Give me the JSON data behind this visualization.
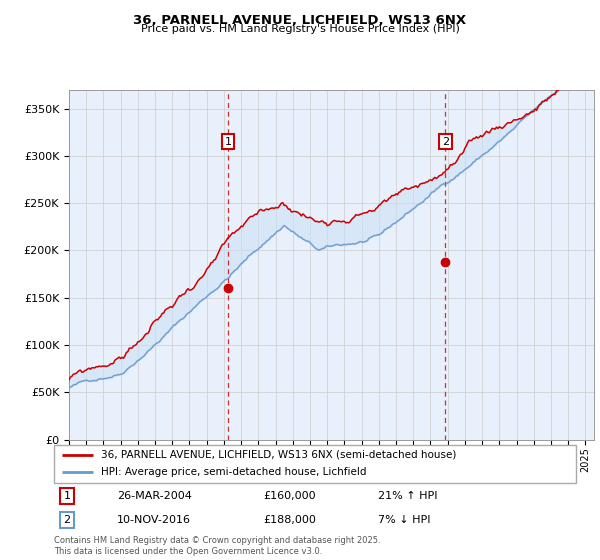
{
  "title1": "36, PARNELL AVENUE, LICHFIELD, WS13 6NX",
  "title2": "Price paid vs. HM Land Registry's House Price Index (HPI)",
  "legend_line1": "36, PARNELL AVENUE, LICHFIELD, WS13 6NX (semi-detached house)",
  "legend_line2": "HPI: Average price, semi-detached house, Lichfield",
  "annotation1_num": "1",
  "annotation1_date": "26-MAR-2004",
  "annotation1_price": "£160,000",
  "annotation1_hpi": "21% ↑ HPI",
  "annotation2_num": "2",
  "annotation2_date": "10-NOV-2016",
  "annotation2_price": "£188,000",
  "annotation2_hpi": "7% ↓ HPI",
  "copyright": "Contains HM Land Registry data © Crown copyright and database right 2025.\nThis data is licensed under the Open Government Licence v3.0.",
  "red_color": "#cc0000",
  "blue_color": "#6699cc",
  "shading_color": "#cce0f5",
  "grid_color": "#cccccc",
  "plot_bg": "#e8f0fb",
  "ylim": [
    0,
    370000
  ],
  "yticks": [
    0,
    50000,
    100000,
    150000,
    200000,
    250000,
    300000,
    350000
  ],
  "ytick_labels": [
    "£0",
    "£50K",
    "£100K",
    "£150K",
    "£200K",
    "£250K",
    "£300K",
    "£350K"
  ],
  "sale1_x": 2004.23,
  "sale1_y": 160000,
  "sale2_x": 2016.86,
  "sale2_y": 188000,
  "xmin": 1995,
  "xmax": 2025.5
}
